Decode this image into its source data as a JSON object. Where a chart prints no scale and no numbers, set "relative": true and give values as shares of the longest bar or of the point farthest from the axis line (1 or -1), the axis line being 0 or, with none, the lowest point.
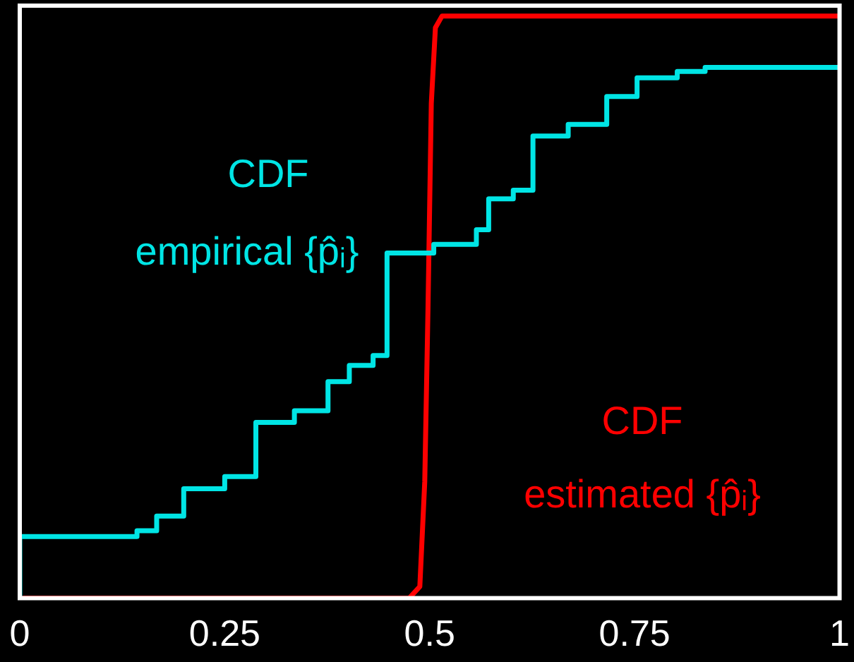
{
  "chart_data": {
    "type": "step",
    "relative": true,
    "xlim": [
      0,
      1
    ],
    "xticks": [
      0,
      0.25,
      0.5,
      0.75,
      1
    ],
    "tick_labels": "x",
    "grid": false,
    "legend": false,
    "marker": "none",
    "series": [
      {
        "name": "CDF empirical {p̂ᵢ}",
        "color": "#00e5e5",
        "x": [
          0,
          0,
          0.143,
          0.167,
          0.2,
          0.25,
          0.288,
          0.335,
          0.376,
          0.402,
          0.431,
          0.448,
          0.505,
          0.557,
          0.572,
          0.602,
          0.626,
          0.669,
          0.716,
          0.753,
          0.802,
          0.836,
          0.862,
          1
        ],
        "values": [
          0,
          0.093,
          0.106,
          0.116,
          0.141,
          0.188,
          0.209,
          0.302,
          0.322,
          0.372,
          0.4,
          0.417,
          0.593,
          0.608,
          0.633,
          0.686,
          0.701,
          0.794,
          0.814,
          0.862,
          0.894,
          0.905,
          0.912,
          0.912
        ]
      },
      {
        "name": "CDF estimated {p̂ᵢ}",
        "type": "line",
        "color": "#ff0000",
        "x": [
          0,
          0.475,
          0.488,
          0.494,
          0.498,
          0.502,
          0.507,
          0.515,
          1
        ],
        "values": [
          0,
          0,
          0.02,
          0.2,
          0.5,
          0.85,
          0.98,
          1,
          1
        ]
      }
    ]
  }
}
